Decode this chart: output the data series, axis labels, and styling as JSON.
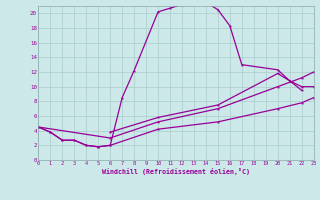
{
  "background_color": "#cce8e8",
  "grid_color": "#aacccc",
  "line_color": "#990099",
  "xlabel": "Windchill (Refroidissement éolien,°C)",
  "xlim": [
    0,
    23
  ],
  "ylim": [
    0,
    21
  ],
  "yticks": [
    0,
    2,
    4,
    6,
    8,
    10,
    12,
    14,
    16,
    18,
    20
  ],
  "line1_x": [
    0,
    1,
    2,
    3,
    4,
    5,
    6,
    7,
    8,
    10,
    11,
    12,
    13,
    14,
    15,
    16,
    17,
    20,
    21,
    22
  ],
  "line1_y": [
    4.5,
    3.8,
    2.7,
    2.7,
    2.0,
    1.8,
    2.0,
    8.5,
    12.2,
    20.2,
    20.7,
    21.2,
    21.5,
    21.5,
    20.5,
    18.3,
    13.0,
    12.3,
    10.8,
    9.5
  ],
  "line2_x": [
    0,
    1,
    2,
    3,
    4,
    5,
    6,
    10,
    15,
    20,
    22,
    23
  ],
  "line2_y": [
    4.5,
    3.8,
    2.7,
    2.7,
    2.0,
    1.8,
    2.0,
    4.2,
    5.2,
    7.0,
    7.8,
    8.5
  ],
  "line3_x": [
    0,
    6,
    10,
    15,
    20,
    22,
    23
  ],
  "line3_y": [
    4.5,
    3.0,
    5.2,
    7.0,
    10.0,
    11.2,
    12.0
  ],
  "line4_x": [
    6,
    10,
    15,
    20,
    21,
    22,
    23
  ],
  "line4_y": [
    3.8,
    5.8,
    7.5,
    11.8,
    10.8,
    10.0,
    10.0
  ]
}
